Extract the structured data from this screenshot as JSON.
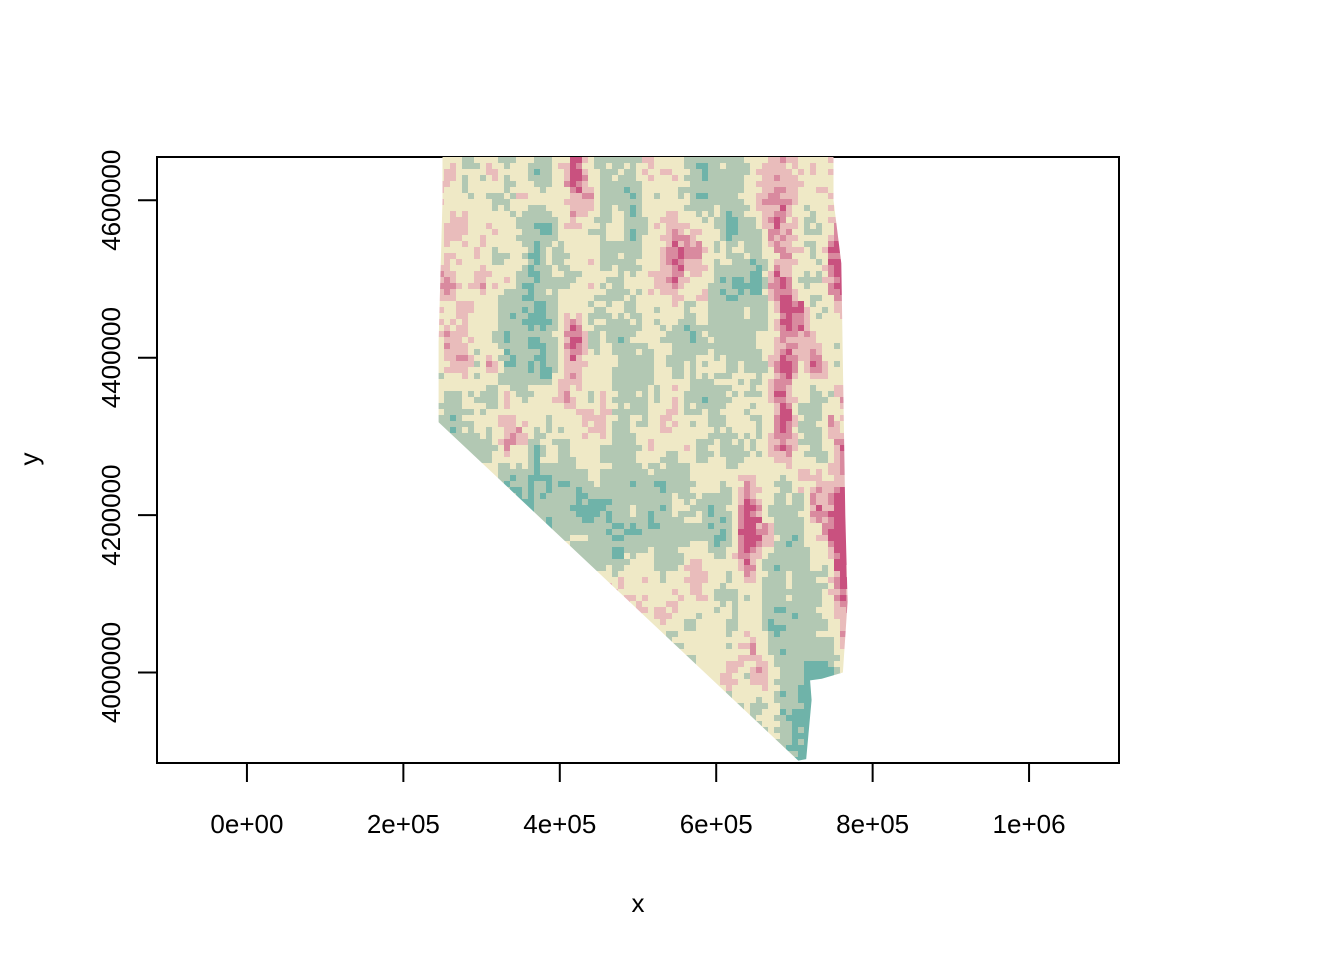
{
  "chart_data": {
    "type": "heatmap",
    "title": "",
    "xlabel": "x",
    "ylabel": "y",
    "xlim": [
      -115000,
      1115000
    ],
    "ylim": [
      3885000,
      4655000
    ],
    "x_ticks": [
      {
        "value": 0,
        "label": "0e+00"
      },
      {
        "value": 200000,
        "label": "2e+05"
      },
      {
        "value": 400000,
        "label": "4e+05"
      },
      {
        "value": 600000,
        "label": "6e+05"
      },
      {
        "value": 800000,
        "label": "8e+05"
      },
      {
        "value": 1000000,
        "label": "1e+06"
      }
    ],
    "y_ticks": [
      {
        "value": 4000000,
        "label": "4000000"
      },
      {
        "value": 4200000,
        "label": "4200000"
      },
      {
        "value": 4400000,
        "label": "4400000"
      },
      {
        "value": 4600000,
        "label": "4600000"
      }
    ],
    "palette": [
      "#009b95",
      "#6fb3a9",
      "#b2c8b3",
      "#efe9c6",
      "#e9bcbb",
      "#d98a9f",
      "#c9517f"
    ],
    "raster_outline": [
      [
        250000,
        4655000
      ],
      [
        750000,
        4655000
      ],
      [
        750000,
        4600000
      ],
      [
        760000,
        4520000
      ],
      [
        765000,
        4200000
      ],
      [
        768000,
        4090000
      ],
      [
        762000,
        4000000
      ],
      [
        735000,
        3992000
      ],
      [
        720000,
        3990000
      ],
      [
        722000,
        3965000
      ],
      [
        715000,
        3890000
      ],
      [
        705000,
        3888000
      ],
      [
        245000,
        4318000
      ],
      [
        245000,
        4420000
      ],
      [
        250000,
        4600000
      ]
    ],
    "grid": false,
    "legend": "none"
  }
}
